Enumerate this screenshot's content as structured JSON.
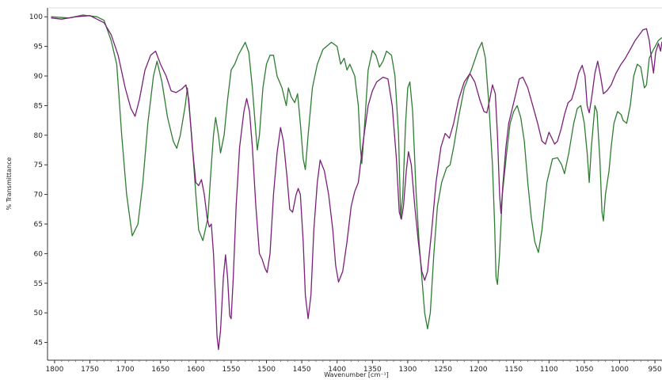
{
  "chart_data": {
    "type": "line",
    "title": "",
    "xlabel": "Wavenumber [cm⁻¹]",
    "ylabel": "% Transmittance",
    "xlim": [
      1810,
      940
    ],
    "ylim": [
      42,
      101.5
    ],
    "x_reversed": true,
    "grid": false,
    "legend": "none",
    "x_ticks": [
      1800,
      1750,
      1700,
      1650,
      1600,
      1550,
      1500,
      1450,
      1400,
      1350,
      1300,
      1250,
      1200,
      1150,
      1100,
      1050,
      1000,
      950
    ],
    "y_ticks": [
      45,
      50,
      55,
      60,
      65,
      70,
      75,
      80,
      85,
      90,
      95,
      100
    ],
    "series": [
      {
        "color": "#2e7d32",
        "points": [
          [
            1805,
            100
          ],
          [
            1780,
            99.8
          ],
          [
            1760,
            100.3
          ],
          [
            1740,
            100
          ],
          [
            1730,
            99.4
          ],
          [
            1720,
            96
          ],
          [
            1712,
            92
          ],
          [
            1705,
            80
          ],
          [
            1698,
            70
          ],
          [
            1690,
            63
          ],
          [
            1682,
            65
          ],
          [
            1675,
            72
          ],
          [
            1668,
            82
          ],
          [
            1660,
            90
          ],
          [
            1655,
            92.5
          ],
          [
            1648,
            89
          ],
          [
            1640,
            83
          ],
          [
            1632,
            79
          ],
          [
            1627,
            77.8
          ],
          [
            1622,
            80
          ],
          [
            1615,
            85
          ],
          [
            1612,
            88
          ],
          [
            1606,
            80
          ],
          [
            1600,
            70
          ],
          [
            1596,
            64
          ],
          [
            1590,
            62.2
          ],
          [
            1583,
            66
          ],
          [
            1578,
            75
          ],
          [
            1575,
            80
          ],
          [
            1572,
            83
          ],
          [
            1568,
            80
          ],
          [
            1565,
            77
          ],
          [
            1560,
            80
          ],
          [
            1555,
            86
          ],
          [
            1550,
            91
          ],
          [
            1545,
            92
          ],
          [
            1540,
            93.5
          ],
          [
            1530,
            95.7
          ],
          [
            1525,
            94
          ],
          [
            1520,
            88
          ],
          [
            1516,
            82
          ],
          [
            1513,
            77.5
          ],
          [
            1510,
            80
          ],
          [
            1505,
            88
          ],
          [
            1500,
            92
          ],
          [
            1495,
            93.5
          ],
          [
            1490,
            93.5
          ],
          [
            1485,
            90
          ],
          [
            1478,
            88
          ],
          [
            1472,
            85
          ],
          [
            1469,
            88
          ],
          [
            1465,
            86.5
          ],
          [
            1460,
            85.5
          ],
          [
            1456,
            87
          ],
          [
            1452,
            82
          ],
          [
            1448,
            76
          ],
          [
            1445,
            74.2
          ],
          [
            1441,
            80
          ],
          [
            1435,
            88
          ],
          [
            1428,
            92
          ],
          [
            1420,
            94.5
          ],
          [
            1408,
            95.7
          ],
          [
            1400,
            95
          ],
          [
            1395,
            92
          ],
          [
            1390,
            93
          ],
          [
            1386,
            91
          ],
          [
            1382,
            92
          ],
          [
            1375,
            90
          ],
          [
            1370,
            85
          ],
          [
            1367,
            78
          ],
          [
            1365,
            75.2
          ],
          [
            1362,
            80
          ],
          [
            1356,
            91
          ],
          [
            1350,
            94.3
          ],
          [
            1345,
            93.5
          ],
          [
            1340,
            91.5
          ],
          [
            1335,
            92.5
          ],
          [
            1330,
            94.2
          ],
          [
            1323,
            93.5
          ],
          [
            1318,
            90
          ],
          [
            1313,
            80
          ],
          [
            1310,
            66
          ],
          [
            1307,
            70
          ],
          [
            1303,
            82
          ],
          [
            1300,
            88
          ],
          [
            1297,
            89
          ],
          [
            1293,
            84
          ],
          [
            1288,
            70
          ],
          [
            1284,
            62
          ],
          [
            1280,
            56
          ],
          [
            1276,
            50
          ],
          [
            1272,
            47.3
          ],
          [
            1268,
            50
          ],
          [
            1263,
            60
          ],
          [
            1258,
            68
          ],
          [
            1252,
            72
          ],
          [
            1245,
            74.5
          ],
          [
            1240,
            75
          ],
          [
            1235,
            78
          ],
          [
            1228,
            83
          ],
          [
            1220,
            88
          ],
          [
            1210,
            91
          ],
          [
            1200,
            94.5
          ],
          [
            1195,
            95.7
          ],
          [
            1190,
            93
          ],
          [
            1185,
            85
          ],
          [
            1180,
            75
          ],
          [
            1177,
            65
          ],
          [
            1175,
            56
          ],
          [
            1173,
            54.8
          ],
          [
            1170,
            60
          ],
          [
            1166,
            70
          ],
          [
            1160,
            77
          ],
          [
            1155,
            82
          ],
          [
            1150,
            84
          ],
          [
            1145,
            85
          ],
          [
            1140,
            83
          ],
          [
            1135,
            79
          ],
          [
            1130,
            72
          ],
          [
            1125,
            66
          ],
          [
            1120,
            62
          ],
          [
            1115,
            60.2
          ],
          [
            1110,
            64
          ],
          [
            1103,
            72
          ],
          [
            1095,
            76
          ],
          [
            1088,
            76.2
          ],
          [
            1082,
            75
          ],
          [
            1078,
            73.5
          ],
          [
            1072,
            77
          ],
          [
            1065,
            82
          ],
          [
            1060,
            84.5
          ],
          [
            1055,
            85
          ],
          [
            1050,
            82
          ],
          [
            1046,
            77
          ],
          [
            1043,
            72
          ],
          [
            1040,
            78
          ],
          [
            1035,
            85
          ],
          [
            1032,
            84
          ],
          [
            1028,
            76
          ],
          [
            1025,
            67
          ],
          [
            1023,
            65.5
          ],
          [
            1020,
            70
          ],
          [
            1015,
            74
          ],
          [
            1012,
            78
          ],
          [
            1008,
            82
          ],
          [
            1003,
            84
          ],
          [
            998,
            83.5
          ],
          [
            995,
            82.5
          ],
          [
            990,
            82
          ],
          [
            985,
            85
          ],
          [
            980,
            90
          ],
          [
            975,
            92
          ],
          [
            970,
            91.5
          ],
          [
            965,
            88
          ],
          [
            962,
            88.5
          ],
          [
            958,
            93
          ],
          [
            952,
            94.5
          ],
          [
            945,
            96
          ],
          [
            940,
            96.5
          ]
        ]
      },
      {
        "color": "#7b1f7a",
        "points": [
          [
            1805,
            99.8
          ],
          [
            1790,
            99.6
          ],
          [
            1770,
            100
          ],
          [
            1750,
            100.2
          ],
          [
            1740,
            99.6
          ],
          [
            1730,
            99
          ],
          [
            1720,
            97
          ],
          [
            1710,
            93.5
          ],
          [
            1700,
            88
          ],
          [
            1692,
            84.5
          ],
          [
            1686,
            83.2
          ],
          [
            1680,
            86
          ],
          [
            1672,
            91
          ],
          [
            1664,
            93.5
          ],
          [
            1657,
            94.2
          ],
          [
            1650,
            92
          ],
          [
            1642,
            90
          ],
          [
            1635,
            87.5
          ],
          [
            1628,
            87.2
          ],
          [
            1620,
            87.8
          ],
          [
            1614,
            88.5
          ],
          [
            1610,
            86
          ],
          [
            1605,
            78
          ],
          [
            1600,
            72
          ],
          [
            1596,
            71.5
          ],
          [
            1592,
            72.5
          ],
          [
            1588,
            70
          ],
          [
            1584,
            66
          ],
          [
            1581,
            64.5
          ],
          [
            1578,
            65
          ],
          [
            1575,
            60
          ],
          [
            1572,
            52
          ],
          [
            1570,
            46
          ],
          [
            1568,
            43.8
          ],
          [
            1565,
            47
          ],
          [
            1561,
            56
          ],
          [
            1558,
            59.8
          ],
          [
            1555,
            56
          ],
          [
            1552,
            49.5
          ],
          [
            1550,
            49
          ],
          [
            1547,
            56
          ],
          [
            1543,
            68
          ],
          [
            1538,
            78
          ],
          [
            1532,
            84
          ],
          [
            1528,
            86.2
          ],
          [
            1524,
            84
          ],
          [
            1520,
            78
          ],
          [
            1515,
            68
          ],
          [
            1510,
            60
          ],
          [
            1506,
            59
          ],
          [
            1502,
            57.5
          ],
          [
            1499,
            56.8
          ],
          [
            1495,
            60
          ],
          [
            1490,
            70
          ],
          [
            1485,
            77
          ],
          [
            1480,
            81.3
          ],
          [
            1476,
            79
          ],
          [
            1471,
            73
          ],
          [
            1467,
            67.5
          ],
          [
            1463,
            67
          ],
          [
            1458,
            70
          ],
          [
            1455,
            71
          ],
          [
            1452,
            70
          ],
          [
            1448,
            62
          ],
          [
            1445,
            53
          ],
          [
            1441,
            49
          ],
          [
            1437,
            53
          ],
          [
            1433,
            64
          ],
          [
            1428,
            72
          ],
          [
            1424,
            75.8
          ],
          [
            1418,
            74
          ],
          [
            1412,
            70
          ],
          [
            1406,
            64
          ],
          [
            1402,
            58
          ],
          [
            1398,
            55.2
          ],
          [
            1392,
            57
          ],
          [
            1386,
            62
          ],
          [
            1380,
            68
          ],
          [
            1375,
            70.5
          ],
          [
            1370,
            72
          ],
          [
            1363,
            79
          ],
          [
            1356,
            85
          ],
          [
            1350,
            87.5
          ],
          [
            1344,
            89
          ],
          [
            1335,
            89.8
          ],
          [
            1328,
            89.5
          ],
          [
            1322,
            85
          ],
          [
            1316,
            76
          ],
          [
            1312,
            67
          ],
          [
            1309,
            65.8
          ],
          [
            1306,
            68
          ],
          [
            1302,
            74
          ],
          [
            1299,
            77.2
          ],
          [
            1295,
            75
          ],
          [
            1290,
            68
          ],
          [
            1285,
            62
          ],
          [
            1280,
            57
          ],
          [
            1276,
            55.5
          ],
          [
            1272,
            57
          ],
          [
            1266,
            64
          ],
          [
            1260,
            72
          ],
          [
            1253,
            78
          ],
          [
            1247,
            80.3
          ],
          [
            1241,
            79.5
          ],
          [
            1235,
            82
          ],
          [
            1228,
            86
          ],
          [
            1220,
            89
          ],
          [
            1212,
            90.4
          ],
          [
            1205,
            89
          ],
          [
            1198,
            86
          ],
          [
            1192,
            84
          ],
          [
            1188,
            83.8
          ],
          [
            1184,
            86
          ],
          [
            1180,
            88.5
          ],
          [
            1176,
            87
          ],
          [
            1173,
            80
          ],
          [
            1170,
            70
          ],
          [
            1168,
            66.8
          ],
          [
            1165,
            72
          ],
          [
            1161,
            78
          ],
          [
            1157,
            82
          ],
          [
            1152,
            84.5
          ],
          [
            1147,
            87
          ],
          [
            1142,
            89.5
          ],
          [
            1137,
            89.8
          ],
          [
            1130,
            88
          ],
          [
            1123,
            85
          ],
          [
            1116,
            82
          ],
          [
            1110,
            79
          ],
          [
            1105,
            78.5
          ],
          [
            1100,
            80.5
          ],
          [
            1096,
            79.5
          ],
          [
            1092,
            78.5
          ],
          [
            1088,
            79
          ],
          [
            1083,
            81
          ],
          [
            1078,
            83.5
          ],
          [
            1073,
            85.5
          ],
          [
            1068,
            86
          ],
          [
            1063,
            88
          ],
          [
            1058,
            90.5
          ],
          [
            1053,
            91.8
          ],
          [
            1049,
            90
          ],
          [
            1046,
            85
          ],
          [
            1043,
            83.8
          ],
          [
            1040,
            86
          ],
          [
            1035,
            90.5
          ],
          [
            1031,
            92.5
          ],
          [
            1027,
            90
          ],
          [
            1023,
            87
          ],
          [
            1018,
            87.5
          ],
          [
            1012,
            88.5
          ],
          [
            1005,
            90.5
          ],
          [
            998,
            92
          ],
          [
            992,
            93
          ],
          [
            985,
            94.5
          ],
          [
            978,
            96
          ],
          [
            972,
            97
          ],
          [
            967,
            97.8
          ],
          [
            962,
            98
          ],
          [
            958,
            96
          ],
          [
            955,
            93
          ],
          [
            952,
            90.5
          ],
          [
            949,
            94
          ],
          [
            945,
            95.5
          ],
          [
            942,
            94.2
          ],
          [
            940,
            95.8
          ]
        ]
      }
    ]
  }
}
